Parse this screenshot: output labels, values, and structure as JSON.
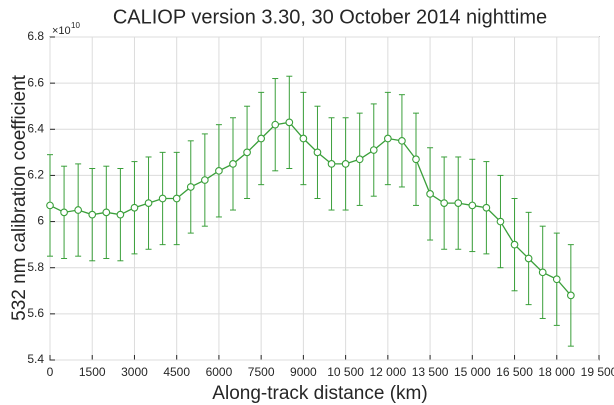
{
  "chart_data": {
    "type": "line",
    "title": "CALIOP version 3.30, 30 October 2014 nighttime",
    "x_label": "Along-track distance (km)",
    "y_label": "532 nm calibration coefficient",
    "y_exponent_label": "×10",
    "y_exponent": "10",
    "x": [
      0,
      500,
      1000,
      1500,
      2000,
      2500,
      3000,
      3500,
      4000,
      4500,
      5000,
      5500,
      6000,
      6500,
      7000,
      7500,
      8000,
      8500,
      9000,
      9500,
      10000,
      10500,
      11000,
      11500,
      12000,
      12500,
      13000,
      13500,
      14000,
      14500,
      15000,
      15500,
      16000,
      16500,
      17000,
      17500,
      18000,
      18500
    ],
    "series": [
      {
        "color": "#3a9f3a",
        "values": [
          6.07,
          6.04,
          6.05,
          6.03,
          6.04,
          6.03,
          6.06,
          6.08,
          6.1,
          6.1,
          6.15,
          6.18,
          6.22,
          6.25,
          6.3,
          6.36,
          6.42,
          6.43,
          6.36,
          6.3,
          6.25,
          6.25,
          6.27,
          6.31,
          6.36,
          6.35,
          6.27,
          6.12,
          6.08,
          6.08,
          6.07,
          6.06,
          6.0,
          5.9,
          5.84,
          5.78,
          5.75,
          5.68
        ],
        "errors": [
          0.22,
          0.2,
          0.2,
          0.2,
          0.2,
          0.2,
          0.2,
          0.2,
          0.2,
          0.2,
          0.2,
          0.2,
          0.2,
          0.2,
          0.2,
          0.2,
          0.2,
          0.2,
          0.2,
          0.2,
          0.2,
          0.2,
          0.2,
          0.2,
          0.2,
          0.2,
          0.2,
          0.2,
          0.2,
          0.2,
          0.2,
          0.2,
          0.2,
          0.2,
          0.2,
          0.2,
          0.2,
          0.22
        ]
      }
    ],
    "xlim": [
      0,
      19500
    ],
    "ylim": [
      5.4,
      6.8
    ],
    "xticks": [
      0,
      1500,
      3000,
      4500,
      6000,
      7500,
      9000,
      {
        "value": 10500,
        "label": "10 500"
      },
      {
        "value": 12000,
        "label": "12 000"
      },
      {
        "value": 13500,
        "label": "13 500"
      },
      {
        "value": 15000,
        "label": "15 000"
      },
      {
        "value": 16500,
        "label": "16 500"
      },
      {
        "value": 18000,
        "label": "18 000"
      },
      {
        "value": 19500,
        "label": "19 500"
      }
    ],
    "yticks": [
      5.4,
      5.6,
      5.8,
      6,
      6.2,
      6.4,
      6.6,
      6.8
    ],
    "grid": true
  }
}
